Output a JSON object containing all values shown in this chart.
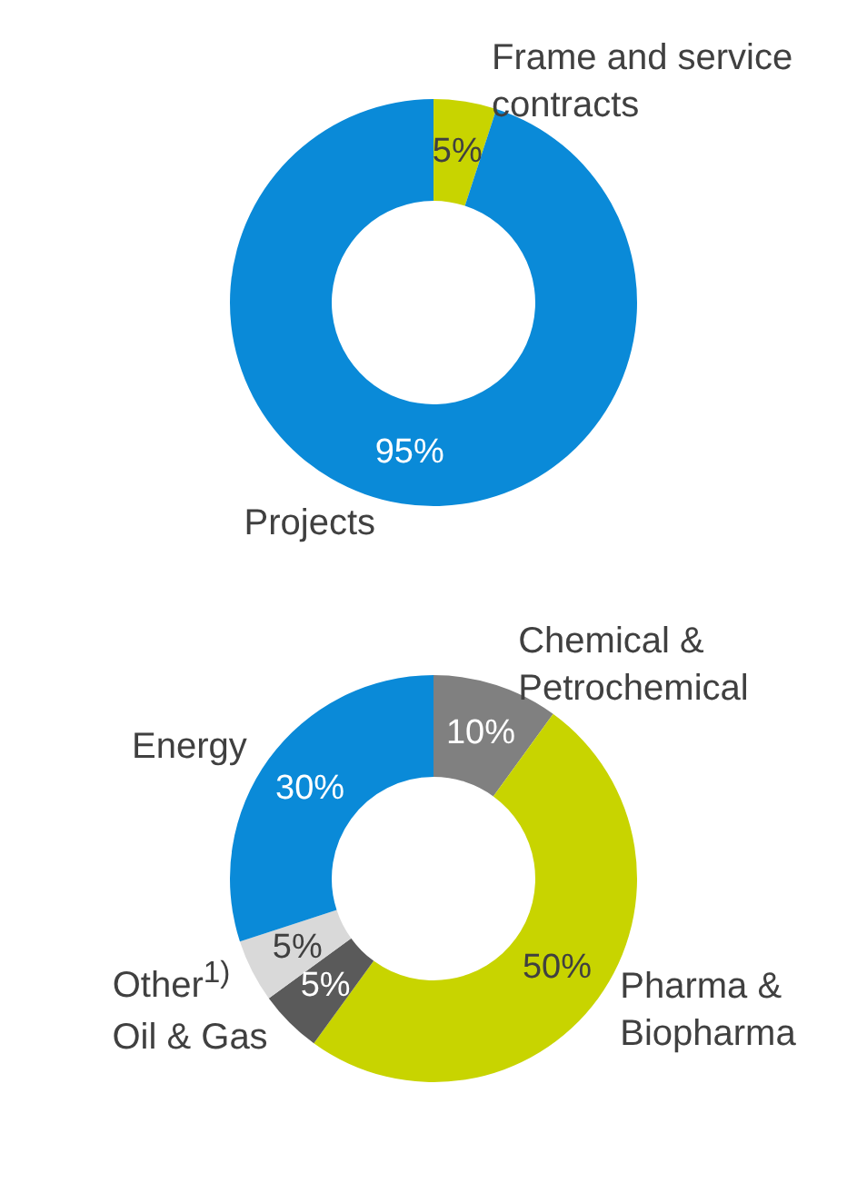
{
  "chart_data": [
    {
      "type": "donut",
      "categories": [
        "Frame and service contracts",
        "Projects"
      ],
      "values": [
        5,
        95
      ],
      "colors": [
        "#c8d400",
        "#0a8ad8"
      ],
      "value_labels": [
        "5%",
        "95%"
      ],
      "legend": false
    },
    {
      "type": "donut",
      "categories": [
        "Chemical & Petrochemical",
        "Pharma & Biopharma",
        "Oil & Gas",
        "Other$^{1)}$",
        "Energy"
      ],
      "values": [
        10,
        50,
        5,
        5,
        30
      ],
      "colors": [
        "#808080",
        "#c8d400",
        "#5a5a5a",
        "#d9d9d9",
        "#0a8ad8"
      ],
      "value_labels": [
        "10%",
        "50%",
        "5%",
        "5%",
        "30%"
      ],
      "legend": false
    }
  ]
}
